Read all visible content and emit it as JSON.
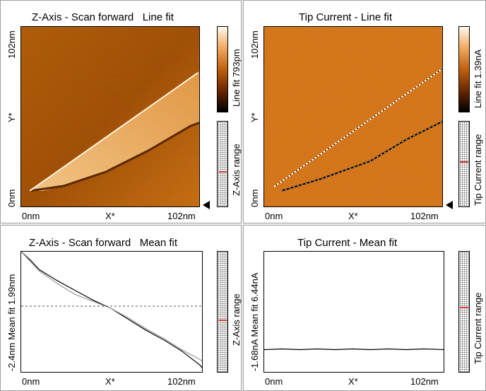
{
  "panels": {
    "z_line": {
      "title": "Z-Axis - Scan forward   Line fit",
      "x_ticks": [
        "0nm",
        "X*",
        "102nm"
      ],
      "y_ticks": [
        "0nm",
        "Y*",
        "102nm"
      ],
      "colorbar_label": "Line fit 793pm",
      "range_label": "Z-Axis range"
    },
    "tip_line": {
      "title": "Tip Current - Line fit",
      "x_ticks": [
        "0nm",
        "X*",
        "102nm"
      ],
      "y_ticks": [
        "0nm",
        "Y*",
        "102nm"
      ],
      "colorbar_label": "Line fit 1.39nA",
      "range_label": "Tip Current range"
    },
    "z_mean": {
      "title": "Z-Axis - Scan forward   Mean fit",
      "x_ticks": [
        "0nm",
        "X*",
        "102nm"
      ],
      "y_label": "-2.4nm   Mean fit   1.99nm",
      "range_label": "Z-Axis range"
    },
    "tip_mean": {
      "title": "Tip Current - Mean fit",
      "x_ticks": [
        "0nm",
        "X*",
        "102nm"
      ],
      "y_label": "-1.68nA   Mean fit   6.44nA",
      "range_label": "Tip Current range"
    }
  },
  "colors": {
    "afm_dark": "#3a1a00",
    "afm_mid": "#c0600e",
    "afm_light": "#fff0d8",
    "marker": "#d04040"
  },
  "chart_data": [
    {
      "type": "line",
      "title": "Z-Axis - Scan forward   Mean fit",
      "xlabel": "X*",
      "ylabel": "Mean fit",
      "xlim": [
        0,
        102
      ],
      "ylim": [
        -2.4,
        1.99
      ],
      "series": [
        {
          "values_x": [
            0,
            5,
            10,
            20,
            30,
            40,
            50,
            60,
            70,
            80,
            90,
            100,
            102
          ],
          "values_y": [
            1.99,
            1.7,
            1.35,
            0.95,
            0.6,
            0.25,
            -0.05,
            -0.45,
            -0.85,
            -1.2,
            -1.6,
            -2.1,
            -2.25
          ]
        },
        {
          "values_x": [
            0,
            5,
            10,
            20,
            30,
            40,
            50,
            60,
            70,
            80,
            90,
            100,
            102
          ],
          "values_y": [
            1.99,
            1.65,
            1.3,
            0.85,
            0.45,
            0.2,
            -0.05,
            -0.4,
            -0.8,
            -1.15,
            -1.55,
            -1.9,
            -2.0
          ]
        }
      ]
    },
    {
      "type": "line",
      "title": "Tip Current - Mean fit",
      "xlabel": "X*",
      "ylabel": "Mean fit",
      "xlim": [
        0,
        102
      ],
      "ylim": [
        -1.68,
        6.44
      ],
      "series": [
        {
          "values_x": [
            0,
            10,
            20,
            30,
            40,
            50,
            60,
            70,
            80,
            90,
            102
          ],
          "values_y": [
            -0.1,
            -0.05,
            -0.1,
            -0.05,
            -0.1,
            -0.05,
            -0.1,
            -0.05,
            -0.1,
            -0.05,
            -0.1
          ]
        }
      ]
    }
  ]
}
